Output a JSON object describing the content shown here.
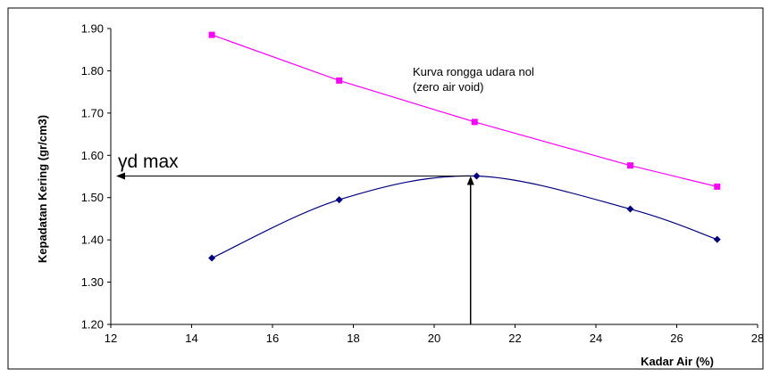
{
  "chart_data": {
    "type": "line",
    "title": "",
    "xlabel": "Kadar Air (%)",
    "ylabel": "Kepadatan Kering (gr/cm3)",
    "xlim": [
      12,
      28
    ],
    "ylim": [
      1.2,
      1.9
    ],
    "x_ticks": [
      "12",
      "14",
      "16",
      "18",
      "20",
      "22",
      "24",
      "26",
      "28"
    ],
    "y_ticks": [
      "1.20",
      "1.30",
      "1.40",
      "1.50",
      "1.60",
      "1.70",
      "1.80",
      "1.90"
    ],
    "grid": false,
    "series": [
      {
        "name": "",
        "color": "#ff00ff",
        "marker": "square",
        "smooth": false,
        "x": [
          14.5,
          17.65,
          21.0,
          24.85,
          27.0
        ],
        "y": [
          1.885,
          1.777,
          1.679,
          1.576,
          1.526
        ]
      },
      {
        "name": "",
        "color": "#000080",
        "marker": "diamond",
        "smooth": true,
        "x": [
          14.5,
          17.65,
          21.05,
          24.85,
          27.0
        ],
        "y": [
          1.357,
          1.495,
          1.551,
          1.473,
          1.401
        ]
      }
    ],
    "annotations": {
      "zav_line1": "Kurva rongga udara nol",
      "zav_line2": "(zero air void)",
      "gamma_label": "γd max",
      "max_point": {
        "x": 20.9,
        "y": 1.551
      }
    }
  }
}
